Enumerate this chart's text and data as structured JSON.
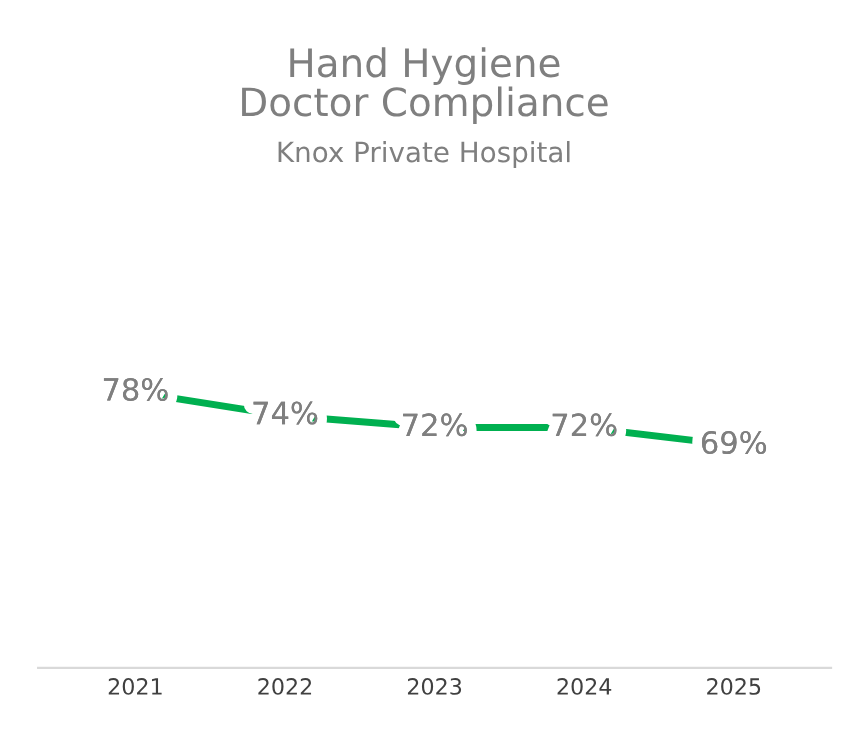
{
  "chart_data": {
    "type": "line",
    "title": "Hand Hygiene\nDoctor Compliance",
    "subtitle": "Knox Private Hospital",
    "categories": [
      "2021",
      "2022",
      "2023",
      "2024",
      "2025"
    ],
    "series": [
      {
        "color": "#00b050",
        "values": [
          78,
          74,
          72,
          72,
          69
        ],
        "value_labels": [
          "78%",
          "74%",
          "72%",
          "72%",
          "69%"
        ]
      }
    ],
    "grid": false,
    "line_style": "solid",
    "tick_labels": "x"
  }
}
